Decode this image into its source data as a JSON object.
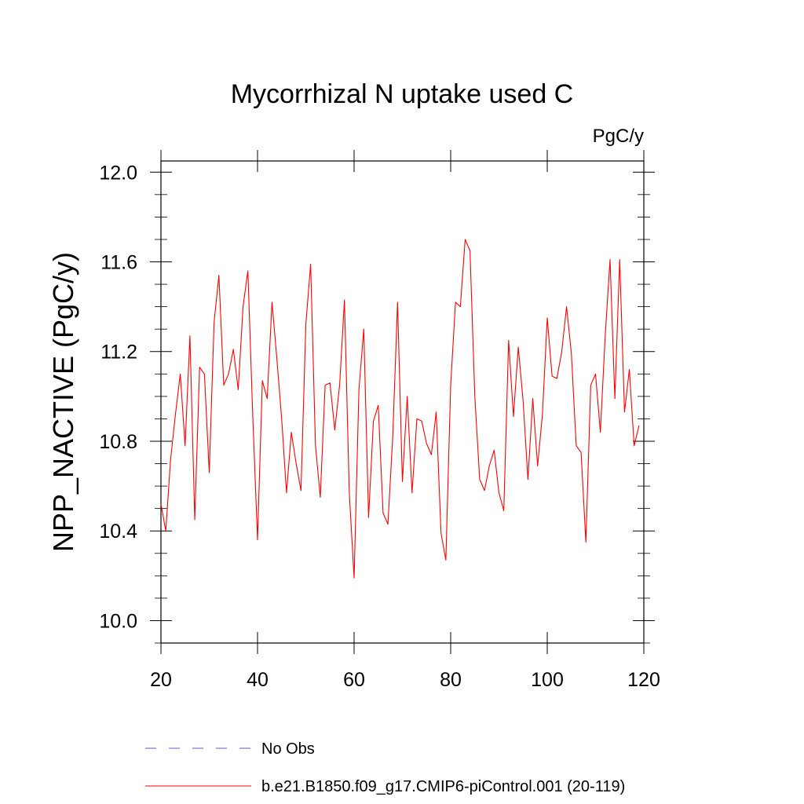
{
  "chart_data": {
    "type": "line",
    "title": "Mycorrhizal N uptake used C",
    "units_label": "PgC/y",
    "xlabel": "",
    "ylabel": "NPP_NACTIVE  (PgC/y)",
    "xlim": [
      20,
      120
    ],
    "ylim": [
      9.9,
      12.05
    ],
    "xticks": [
      20,
      40,
      60,
      80,
      100,
      120
    ],
    "yticks": [
      10.0,
      10.4,
      10.8,
      11.2,
      11.6,
      12.0
    ],
    "ytick_labels": [
      "10.0",
      "10.4",
      "10.8",
      "11.2",
      "11.6",
      "12.0"
    ],
    "grid": false,
    "legend_position": "bottom-left",
    "series": [
      {
        "name": "b.e21.B1850.f09_g17.CMIP6-piControl.001 (20-119)",
        "color": "#ff0000",
        "style": "solid",
        "x": [
          20,
          21,
          22,
          23,
          24,
          25,
          26,
          27,
          28,
          29,
          30,
          31,
          32,
          33,
          34,
          35,
          36,
          37,
          38,
          39,
          40,
          41,
          42,
          43,
          44,
          45,
          46,
          47,
          48,
          49,
          50,
          51,
          52,
          53,
          54,
          55,
          56,
          57,
          58,
          59,
          60,
          61,
          62,
          63,
          64,
          65,
          66,
          67,
          68,
          69,
          70,
          71,
          72,
          73,
          74,
          75,
          76,
          77,
          78,
          79,
          80,
          81,
          82,
          83,
          84,
          85,
          86,
          87,
          88,
          89,
          90,
          91,
          92,
          93,
          94,
          95,
          96,
          97,
          98,
          99,
          100,
          101,
          102,
          103,
          104,
          105,
          106,
          107,
          108,
          109,
          110,
          111,
          112,
          113,
          114,
          115,
          116,
          117,
          118,
          119
        ],
        "values": [
          10.52,
          10.4,
          10.72,
          10.92,
          11.1,
          10.78,
          11.27,
          10.45,
          11.13,
          11.1,
          10.66,
          11.33,
          11.54,
          11.05,
          11.1,
          11.21,
          11.03,
          11.4,
          11.56,
          10.92,
          10.36,
          11.07,
          10.99,
          11.42,
          11.17,
          10.9,
          10.57,
          10.84,
          10.7,
          10.58,
          11.32,
          11.59,
          10.78,
          10.55,
          11.05,
          11.06,
          10.85,
          11.05,
          11.43,
          10.57,
          10.19,
          11.03,
          11.3,
          10.46,
          10.89,
          10.96,
          10.48,
          10.43,
          10.82,
          11.42,
          10.62,
          11.0,
          10.57,
          10.9,
          10.89,
          10.79,
          10.74,
          10.93,
          10.39,
          10.27,
          11.05,
          11.42,
          11.4,
          11.7,
          11.65,
          11.0,
          10.63,
          10.58,
          10.69,
          10.76,
          10.57,
          10.49,
          11.25,
          10.91,
          11.22,
          10.98,
          10.63,
          10.99,
          10.69,
          10.92,
          11.35,
          11.09,
          11.08,
          11.2,
          11.4,
          11.19,
          10.78,
          10.75,
          10.35,
          11.05,
          11.1,
          10.84,
          11.27,
          11.61,
          10.99,
          11.61,
          10.93,
          11.12,
          10.78,
          10.87
        ]
      },
      {
        "name": "No Obs",
        "color": "#6a5acd",
        "style": "dashed",
        "x": [],
        "values": []
      }
    ]
  }
}
